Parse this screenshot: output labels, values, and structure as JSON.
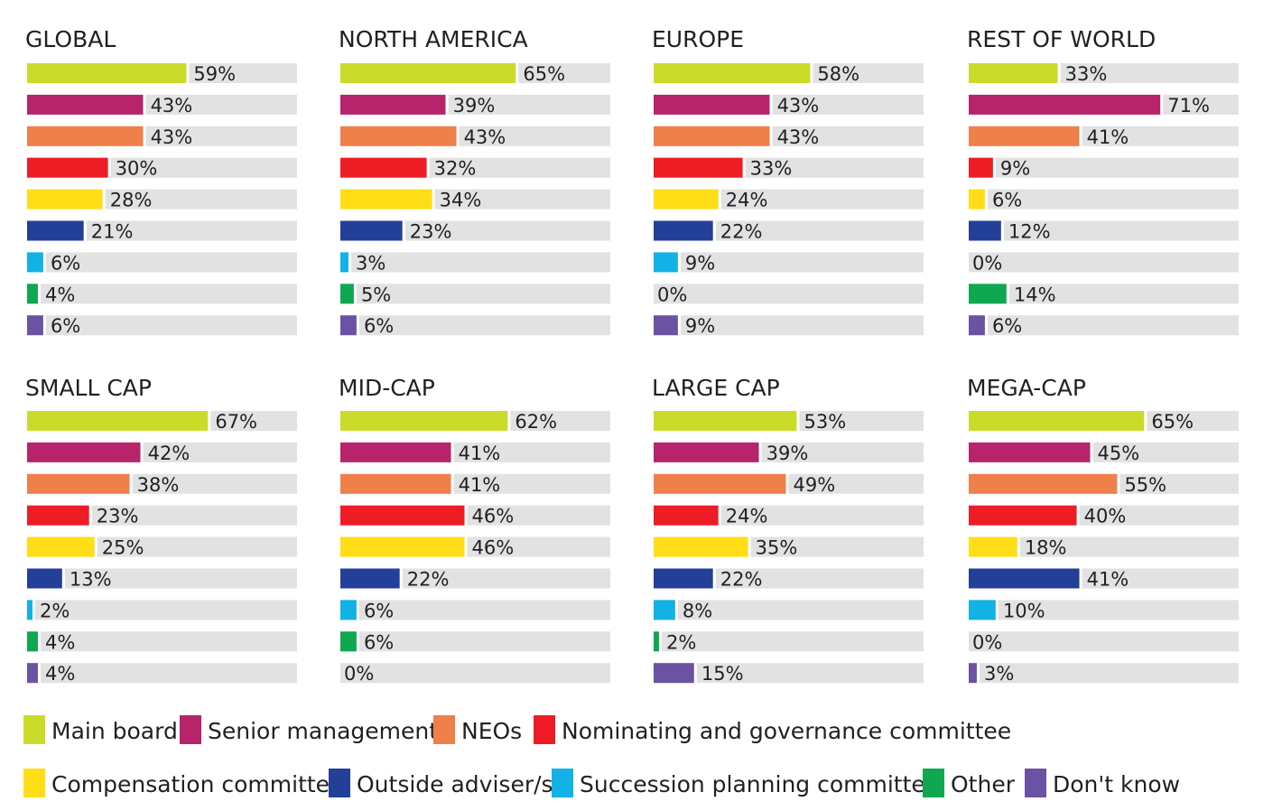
{
  "legend": [
    {
      "name": "Main board",
      "color": "#cbdb2a"
    },
    {
      "name": "Senior management",
      "color": "#b8246a"
    },
    {
      "name": "NEOs",
      "color": "#ef8049"
    },
    {
      "name": "Nominating and governance committee",
      "color": "#ee1c25"
    },
    {
      "name": "Compensation committee",
      "color": "#ffde17"
    },
    {
      "name": "Outside adviser/s",
      "color": "#233f98"
    },
    {
      "name": "Succession planning committee",
      "color": "#12b1e6"
    },
    {
      "name": "Other",
      "color": "#0fa750"
    },
    {
      "name": "Don't know",
      "color": "#6b52a2"
    }
  ],
  "chart_data": [
    {
      "type": "bar",
      "title": "GLOBAL",
      "categories": [
        "Main board",
        "Senior management",
        "NEOs",
        "Nominating and governance committee",
        "Compensation committee",
        "Outside adviser/s",
        "Succession planning committee",
        "Other",
        "Don't know"
      ],
      "values": [
        59,
        43,
        43,
        30,
        28,
        21,
        6,
        4,
        6
      ],
      "value_suffix": "%",
      "xlim": [
        0,
        100
      ]
    },
    {
      "type": "bar",
      "title": "NORTH AMERICA",
      "categories": [
        "Main board",
        "Senior management",
        "NEOs",
        "Nominating and governance committee",
        "Compensation committee",
        "Outside adviser/s",
        "Succession planning committee",
        "Other",
        "Don't know"
      ],
      "values": [
        65,
        39,
        43,
        32,
        34,
        23,
        3,
        5,
        6
      ],
      "value_suffix": "%",
      "xlim": [
        0,
        100
      ]
    },
    {
      "type": "bar",
      "title": "EUROPE",
      "categories": [
        "Main board",
        "Senior management",
        "NEOs",
        "Nominating and governance committee",
        "Compensation committee",
        "Outside adviser/s",
        "Succession planning committee",
        "Other",
        "Don't know"
      ],
      "values": [
        58,
        43,
        43,
        33,
        24,
        22,
        9,
        0,
        9
      ],
      "value_suffix": "%",
      "xlim": [
        0,
        100
      ]
    },
    {
      "type": "bar",
      "title": "REST OF WORLD",
      "categories": [
        "Main board",
        "Senior management",
        "NEOs",
        "Nominating and governance committee",
        "Compensation committee",
        "Outside adviser/s",
        "Succession planning committee",
        "Other",
        "Don't know"
      ],
      "values": [
        33,
        71,
        41,
        9,
        6,
        12,
        0,
        14,
        6
      ],
      "value_suffix": "%",
      "xlim": [
        0,
        100
      ]
    },
    {
      "type": "bar",
      "title": "SMALL CAP",
      "categories": [
        "Main board",
        "Senior management",
        "NEOs",
        "Nominating and governance committee",
        "Compensation committee",
        "Outside adviser/s",
        "Succession planning committee",
        "Other",
        "Don't know"
      ],
      "values": [
        67,
        42,
        38,
        23,
        25,
        13,
        2,
        4,
        4
      ],
      "value_suffix": "%",
      "xlim": [
        0,
        100
      ]
    },
    {
      "type": "bar",
      "title": "MID-CAP",
      "categories": [
        "Main board",
        "Senior management",
        "NEOs",
        "Nominating and governance committee",
        "Compensation committee",
        "Outside adviser/s",
        "Succession planning committee",
        "Other",
        "Don't know"
      ],
      "values": [
        62,
        41,
        41,
        46,
        46,
        22,
        6,
        6,
        0
      ],
      "value_suffix": "%",
      "xlim": [
        0,
        100
      ]
    },
    {
      "type": "bar",
      "title": "LARGE CAP",
      "categories": [
        "Main board",
        "Senior management",
        "NEOs",
        "Nominating and governance committee",
        "Compensation committee",
        "Outside adviser/s",
        "Succession planning committee",
        "Other",
        "Don't know"
      ],
      "values": [
        53,
        39,
        49,
        24,
        35,
        22,
        8,
        2,
        15
      ],
      "value_suffix": "%",
      "xlim": [
        0,
        100
      ]
    },
    {
      "type": "bar",
      "title": "MEGA-CAP",
      "categories": [
        "Main board",
        "Senior management",
        "NEOs",
        "Nominating and governance committee",
        "Compensation committee",
        "Outside adviser/s",
        "Succession planning committee",
        "Other",
        "Don't know"
      ],
      "values": [
        65,
        45,
        55,
        40,
        18,
        41,
        10,
        0,
        3
      ],
      "value_suffix": "%",
      "xlim": [
        0,
        100
      ]
    }
  ]
}
